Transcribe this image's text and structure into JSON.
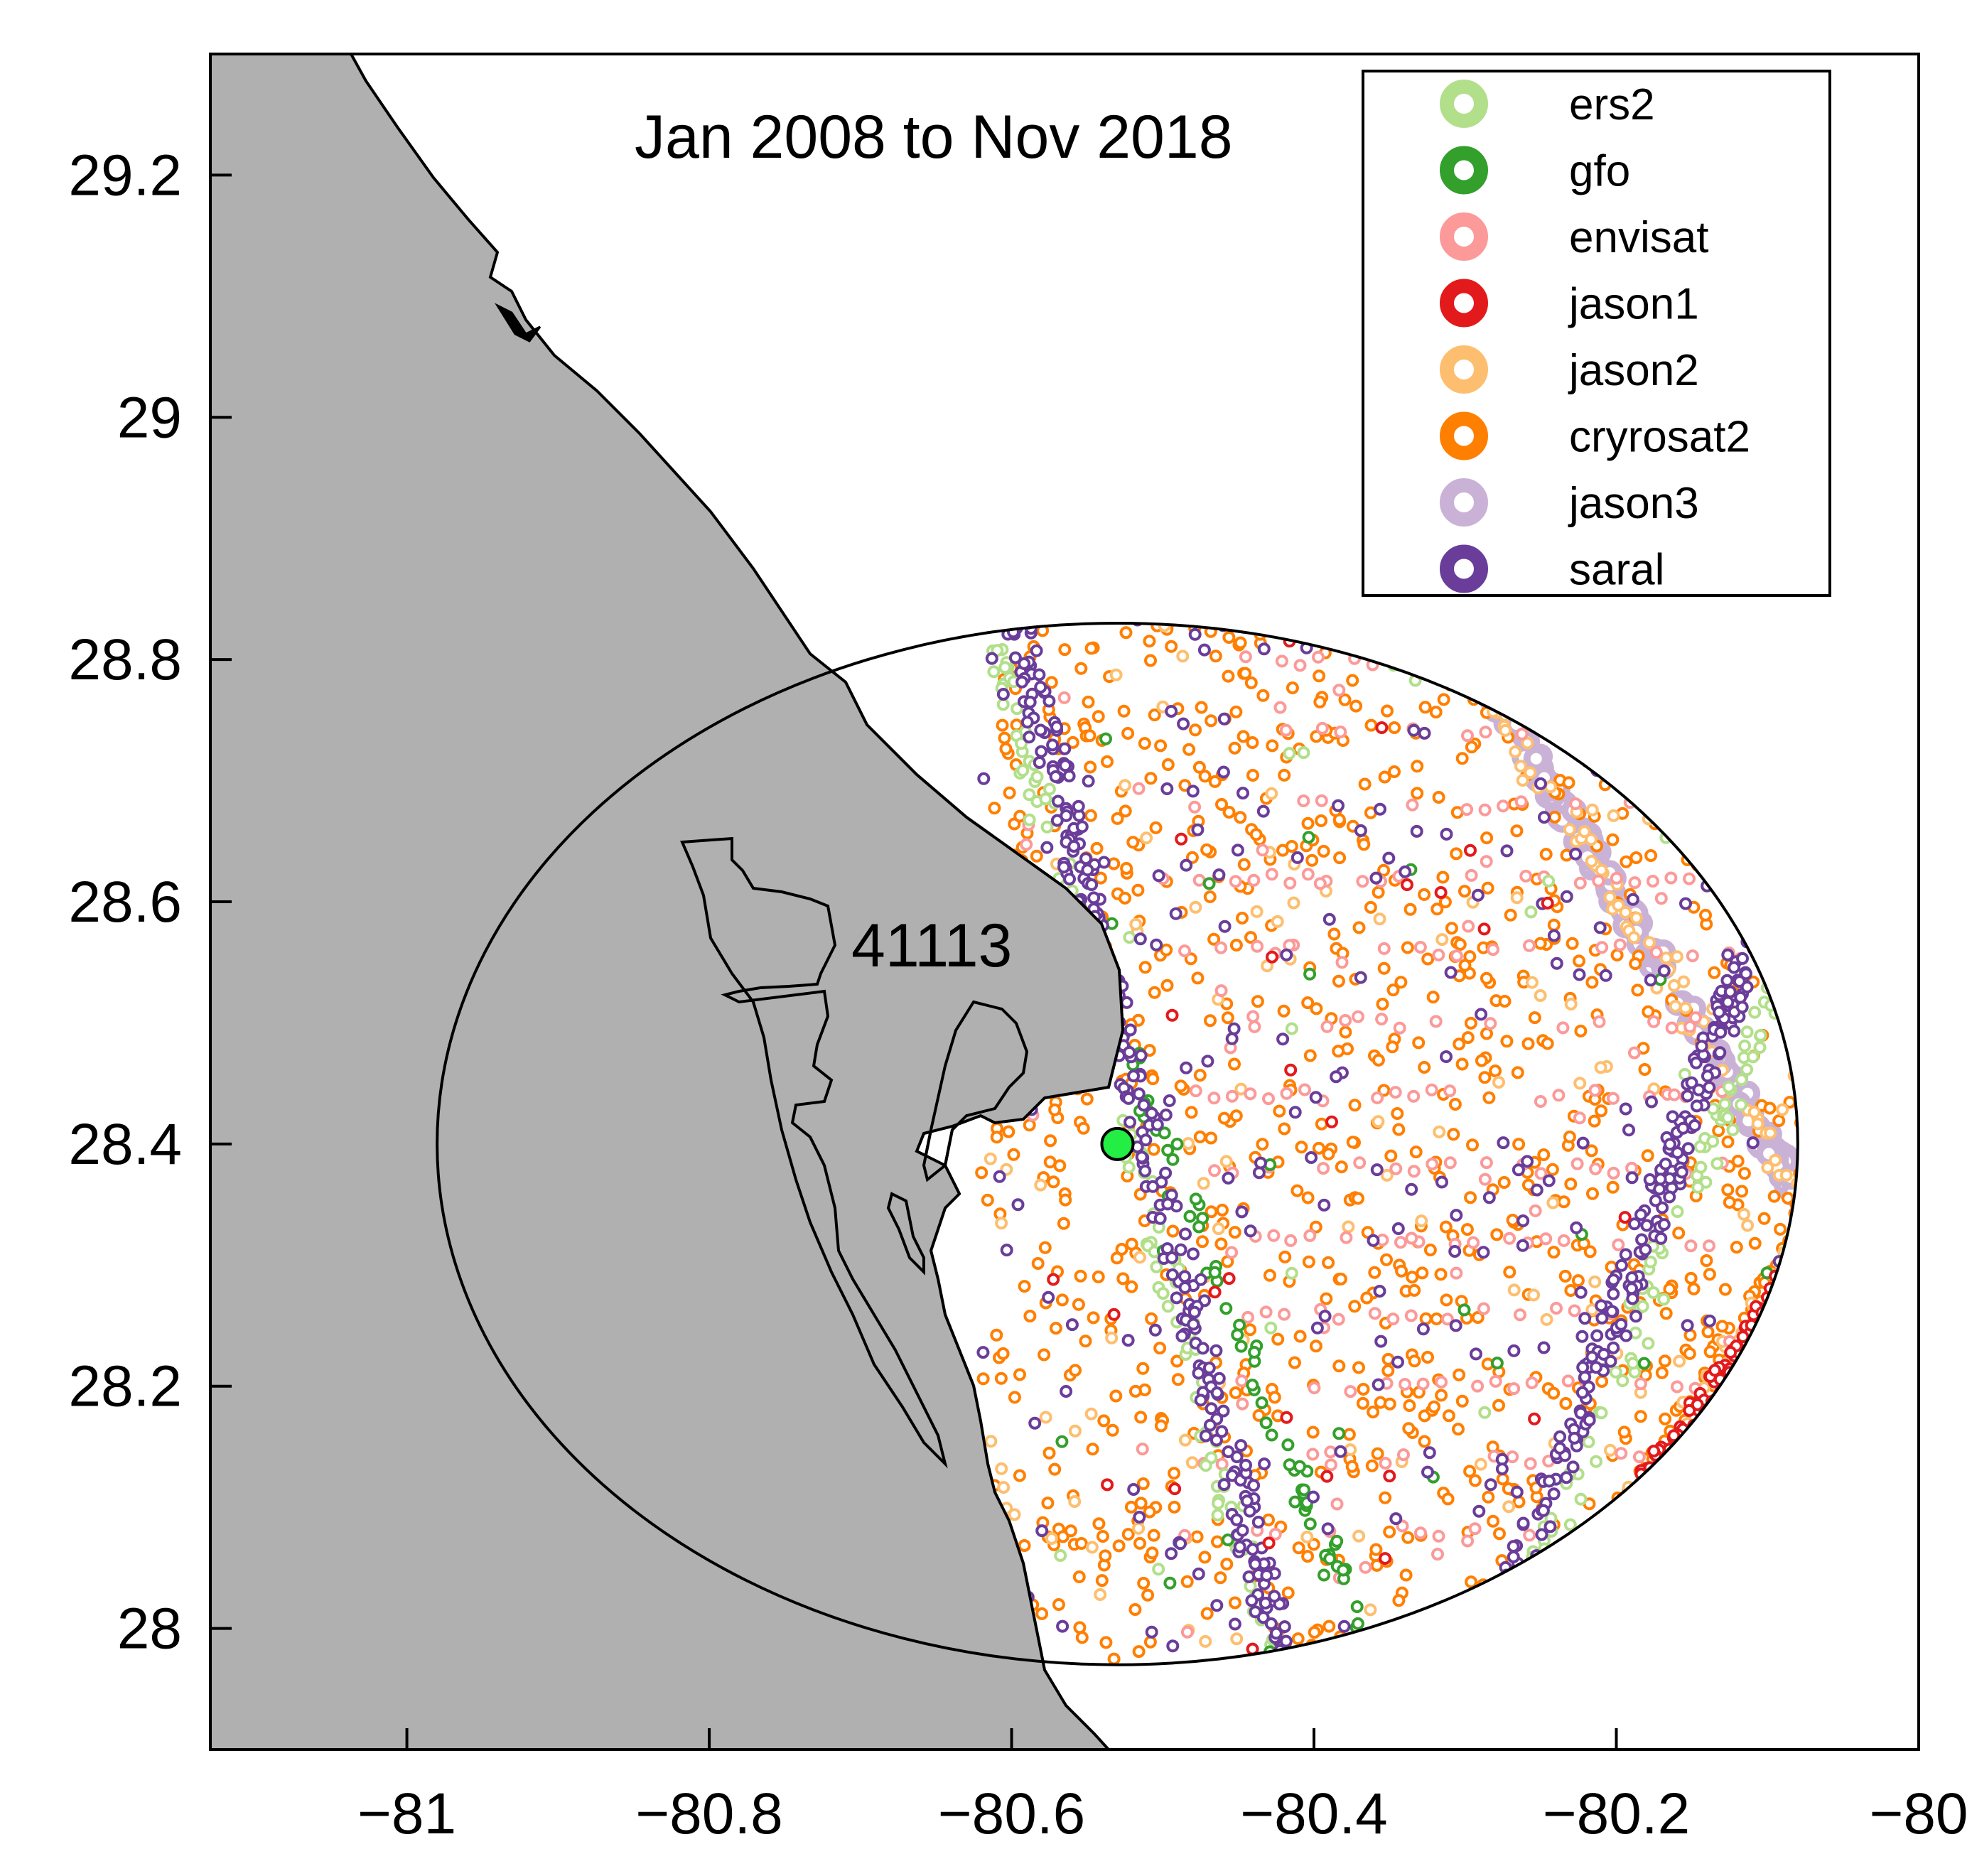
{
  "title": "Jan 2008 to Nov 2018",
  "station": {
    "id": "41113",
    "lon": -80.53,
    "lat": 28.4,
    "color": "#22ee44"
  },
  "axes": {
    "x": {
      "range": [
        -81.13,
        -80.0
      ],
      "ticks": [
        -81,
        -80.8,
        -80.6,
        -80.4,
        -80.2,
        -80
      ],
      "tick_labels": [
        "−81",
        "−80.8",
        "−80.6",
        "−80.4",
        "−80.2",
        "−80"
      ]
    },
    "y": {
      "range": [
        27.9,
        29.3
      ],
      "ticks": [
        28,
        28.2,
        28.4,
        28.6,
        28.8,
        29,
        29.2
      ],
      "tick_labels": [
        "28",
        "28.2",
        "28.4",
        "28.6",
        "28.8",
        "29",
        "29.2"
      ]
    }
  },
  "search_region": {
    "shape": "circle",
    "center_lon": -80.53,
    "center_lat": 28.4,
    "radius_deg": 0.45
  },
  "colors": {
    "land": "#b0b0b0",
    "water": "#ffffff",
    "outline": "#000000"
  },
  "legend": [
    {
      "name": "ers2",
      "color": "#b2df8a"
    },
    {
      "name": "gfo",
      "color": "#33a02c"
    },
    {
      "name": "envisat",
      "color": "#fb9a99"
    },
    {
      "name": "jason1",
      "color": "#e31a1c"
    },
    {
      "name": "jason2",
      "color": "#fdbf6f"
    },
    {
      "name": "cryrosat2",
      "color": "#ff7f00"
    },
    {
      "name": "jason3",
      "color": "#cab2d6"
    },
    {
      "name": "saral",
      "color": "#6a3d9a"
    }
  ],
  "chart_data": {
    "type": "scatter",
    "title": "Jan 2008 to Nov 2018",
    "xlabel": "",
    "ylabel": "",
    "xlim": [
      -81.13,
      -80.0
    ],
    "ylim": [
      27.9,
      29.3
    ],
    "series": [
      {
        "name": "saral",
        "tracks": [
          {
            "from": [
              -80.6,
              28.85
            ],
            "to": [
              -80.42,
              27.97
            ],
            "n": 260
          },
          {
            "from": [
              -80.09,
              28.63
            ],
            "to": [
              -80.27,
              28.03
            ],
            "n": 220
          }
        ],
        "scatter_n": 260
      },
      {
        "name": "ers2",
        "tracks": [
          {
            "from": [
              -80.61,
              28.82
            ],
            "to": [
              -80.43,
              27.98
            ],
            "n": 110
          },
          {
            "from": [
              -80.08,
              28.58
            ],
            "to": [
              -80.25,
              28.05
            ],
            "n": 90
          }
        ],
        "scatter_n": 25
      },
      {
        "name": "gfo",
        "tracks": [
          {
            "from": [
              -80.55,
              28.55
            ],
            "to": [
              -80.37,
              28.0
            ],
            "n": 70
          }
        ],
        "scatter_n": 35
      },
      {
        "name": "envisat",
        "rows_lat": [
          28.8,
          28.74,
          28.68,
          28.62,
          28.56,
          28.5,
          28.44,
          28.38,
          28.32,
          28.26,
          28.2,
          28.14,
          28.08
        ],
        "rows_lon_span": [
          -80.5,
          -80.12
        ],
        "scatter_n": 70
      },
      {
        "name": "jason1",
        "tracks": [
          {
            "from": [
              -80.02,
              28.41
            ],
            "to": [
              -80.21,
              28.06
            ],
            "n": 240
          }
        ],
        "scatter_n": 40
      },
      {
        "name": "jason2",
        "tracks": [
          {
            "from": [
              -80.3,
              28.8
            ],
            "to": [
              -80.04,
              28.28
            ],
            "n": 80
          },
          {
            "from": [
              -80.03,
              28.41
            ],
            "to": [
              -80.21,
              28.06
            ],
            "n": 60
          }
        ],
        "scatter_n": 160
      },
      {
        "name": "cryrosat2",
        "tracks": [
          {
            "from": [
              -80.03,
              28.42
            ],
            "to": [
              -80.22,
              28.05
            ],
            "n": 90
          }
        ],
        "scatter_n": 1300
      },
      {
        "name": "jason3",
        "tracks": [
          {
            "from": [
              -80.3,
              28.81
            ],
            "to": [
              -80.04,
              28.28
            ],
            "n": 200
          }
        ],
        "scatter_n": 0
      }
    ]
  }
}
